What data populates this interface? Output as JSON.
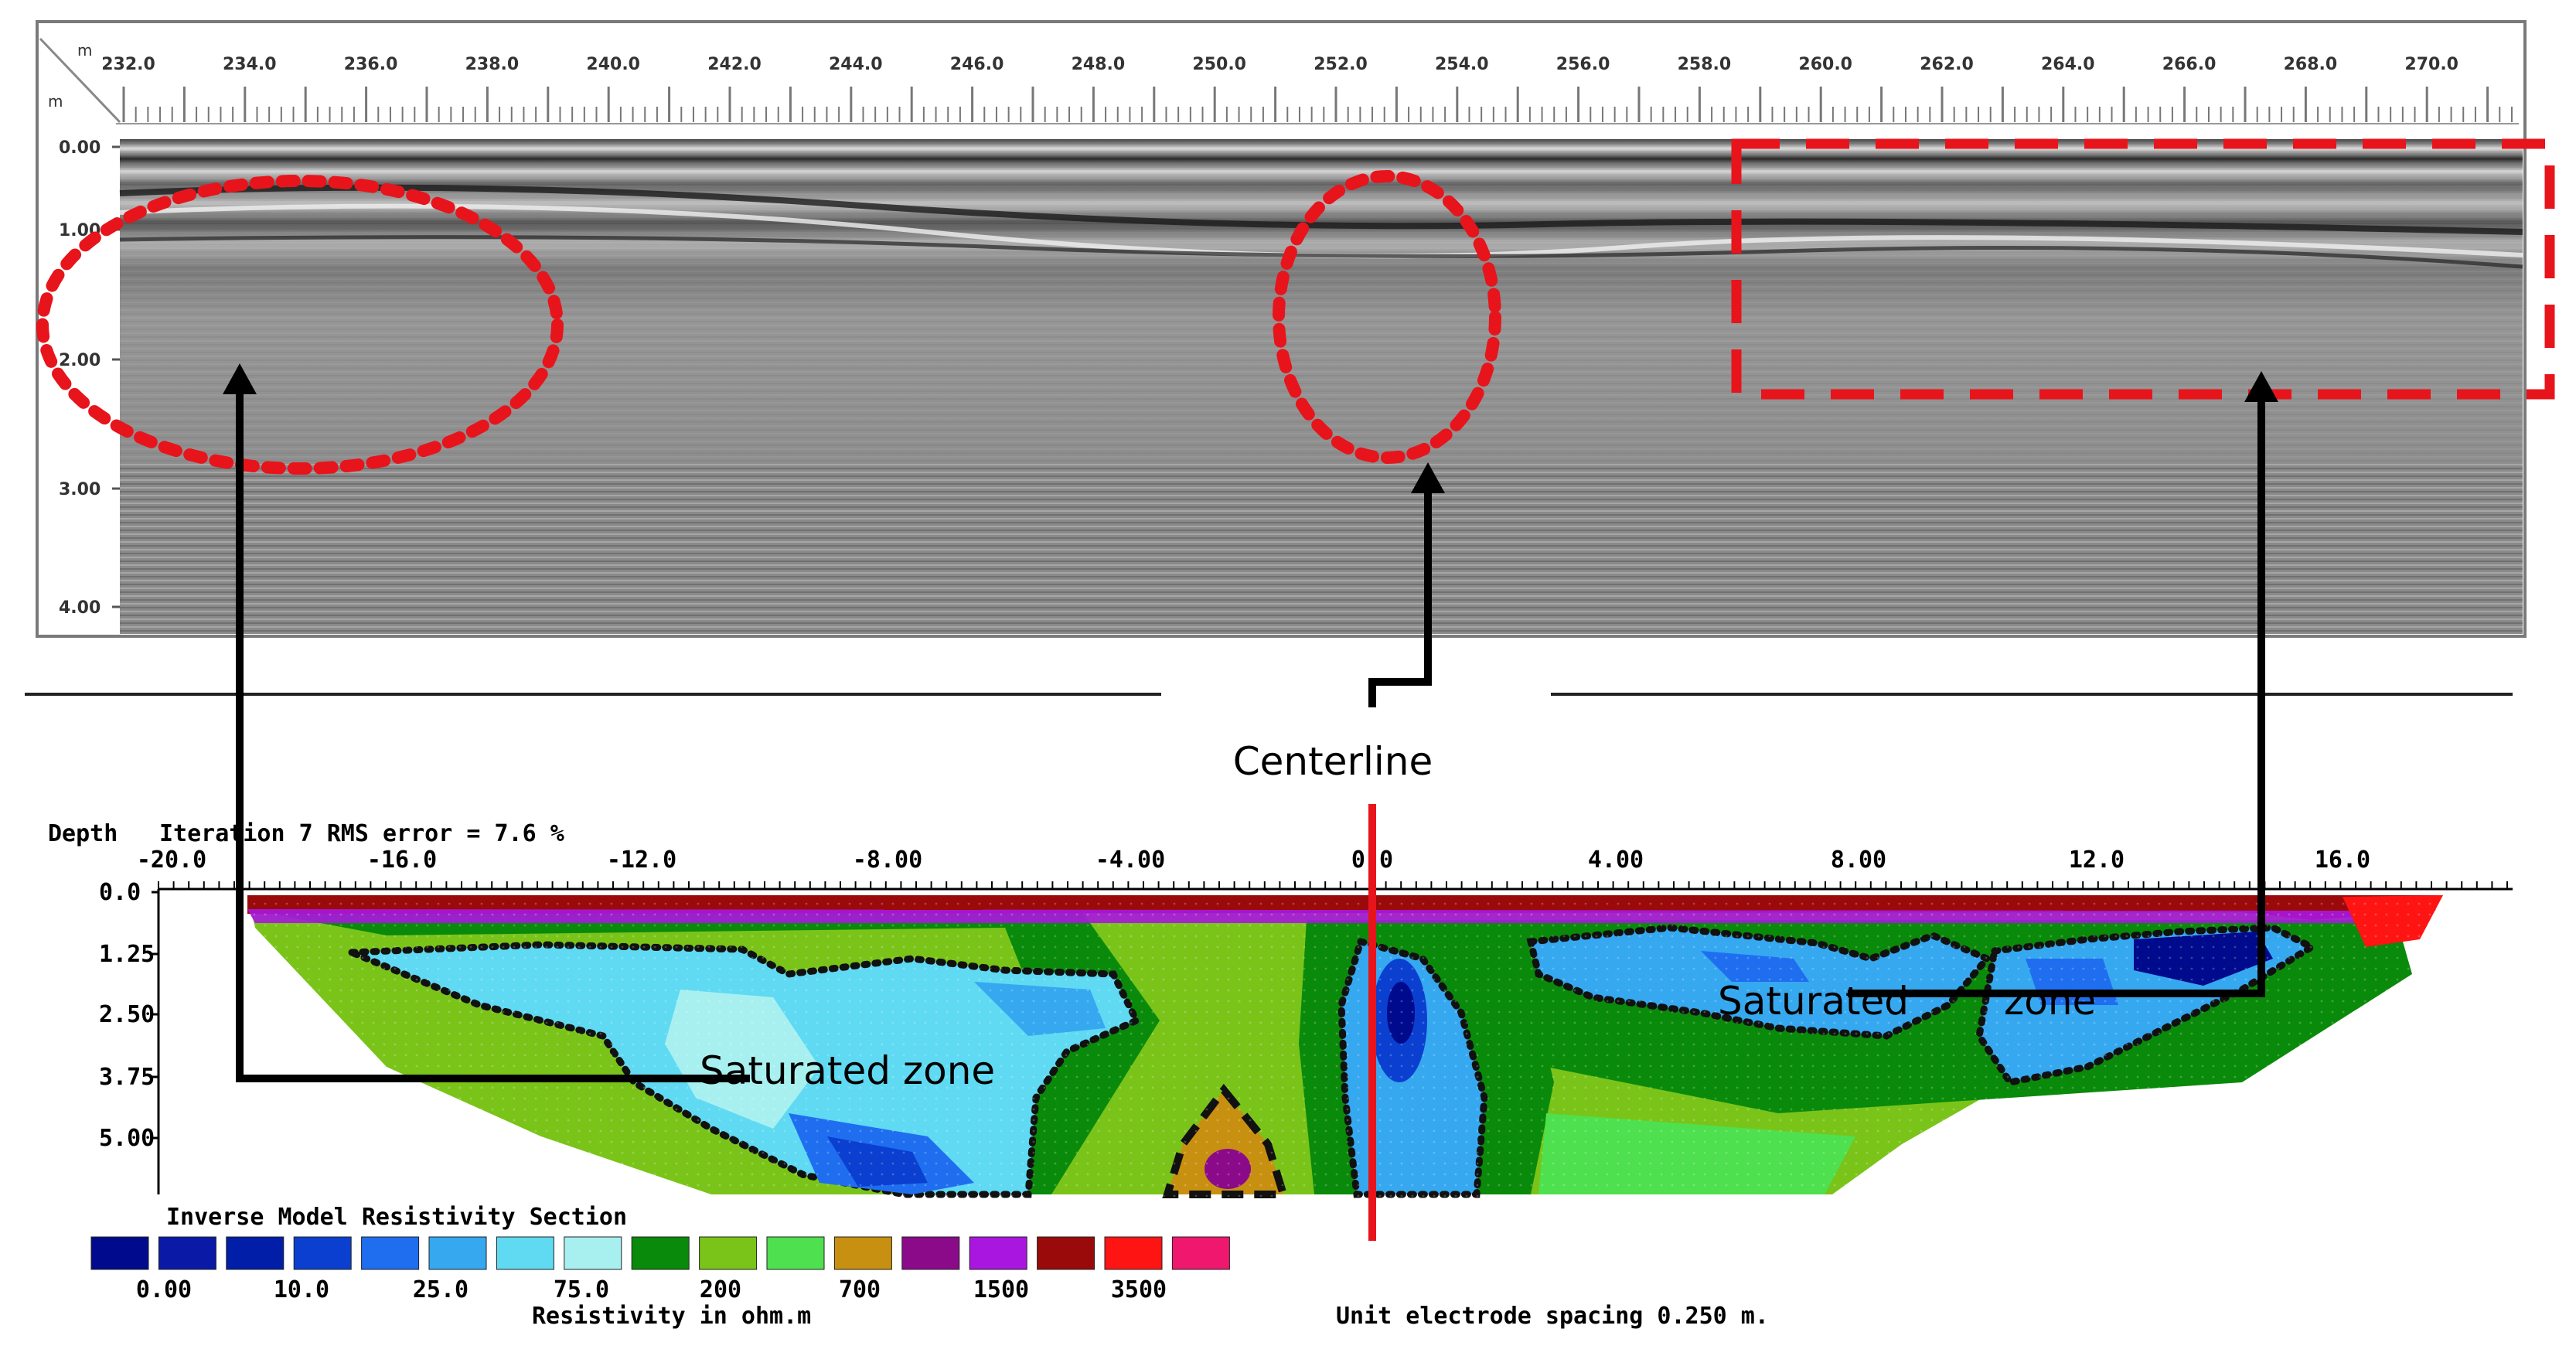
{
  "gpr_panel": {
    "distance_unit": "m",
    "depth_unit": "m",
    "distance_ticks": [
      "232.0",
      "234.0",
      "236.0",
      "238.0",
      "240.0",
      "242.0",
      "244.0",
      "246.0",
      "248.0",
      "250.0",
      "252.0",
      "254.0",
      "256.0",
      "258.0",
      "260.0",
      "262.0",
      "264.0",
      "266.0",
      "268.0",
      "270.0"
    ],
    "depth_ticks": [
      "0.00",
      "1.00",
      "2.00",
      "3.00",
      "4.00"
    ]
  },
  "centerline_label": "Centerline",
  "ert_panel": {
    "header_depth": "Depth",
    "header_iteration": "Iteration 7 RMS error = 7.6 %",
    "x_ticks": [
      "-20.0",
      "-16.0",
      "-12.0",
      "-8.00",
      "-4.00",
      "0.0",
      "4.00",
      "8.00",
      "12.0",
      "16.0"
    ],
    "depth_ticks": [
      "0.0",
      "1.25",
      "2.50",
      "3.75",
      "5.00"
    ],
    "saturated_zone_left": "Saturated zone",
    "saturated_zone_right_part1": "Saturated",
    "saturated_zone_right_part2": "zone",
    "legend_title": "Inverse Model Resistivity Section",
    "legend_values": [
      "0.00",
      "10.0",
      "25.0",
      "75.0",
      "200",
      "700",
      "1500",
      "3500"
    ],
    "legend_unit": "Resistivity in ohm.m",
    "electrode_spacing": "Unit electrode spacing 0.250 m."
  },
  "colors": {
    "annotation_red": "#e8141b",
    "arrow_black": "#000000",
    "legend_swatches": [
      "#000a8c",
      "#0a1aa6",
      "#001ea8",
      "#0a3fd0",
      "#1f6ef0",
      "#35a8f0",
      "#5fdaf2",
      "#a8f0f0",
      "#0a8a0a",
      "#7ac41a",
      "#4ee04e",
      "#c89010",
      "#8a0a8a",
      "#a816e0",
      "#9a0a0a",
      "#ff1414",
      "#f0186e"
    ]
  }
}
